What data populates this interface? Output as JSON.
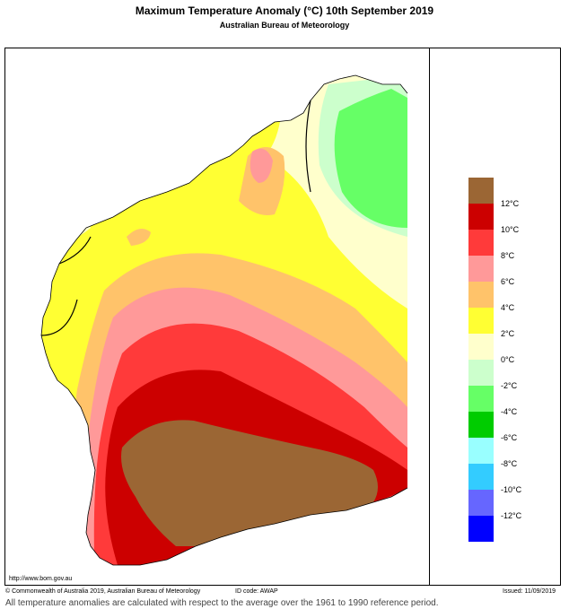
{
  "title": "Maximum Temperature Anomaly (°C)  10th September 2019",
  "subtitle": "Australian Bureau of Meteorology",
  "url": "http://www.bom.gov.au",
  "copyright": "© Commonwealth of Australia 2019, Australian Bureau of Meteorology",
  "id_code": "ID code: AWAP",
  "issued": "Issued: 11/09/2019",
  "note": "All temperature anomalies are calculated with respect to the average over the 1961 to 1990 reference period.",
  "legend": {
    "bins": [
      {
        "color": "#9b6634"
      },
      {
        "color": "#cc0000",
        "label": "12°C"
      },
      {
        "color": "#ff3a3a",
        "label": "10°C"
      },
      {
        "color": "#ff9999",
        "label": "8°C"
      },
      {
        "color": "#ffc36a",
        "label": "6°C"
      },
      {
        "color": "#ffff33",
        "label": "4°C"
      },
      {
        "color": "#ffffcc",
        "label": "2°C"
      },
      {
        "color": "#ccffcc",
        "label": "0°C"
      },
      {
        "color": "#66ff66",
        "label": "-2°C"
      },
      {
        "color": "#00cc00",
        "label": "-4°C"
      },
      {
        "color": "#99ffff",
        "label": "-6°C"
      },
      {
        "color": "#33ccff",
        "label": "-8°C"
      },
      {
        "color": "#6666ff",
        "label": "-10°C"
      },
      {
        "color": "#0000ff",
        "label": "-12°C"
      }
    ]
  }
}
